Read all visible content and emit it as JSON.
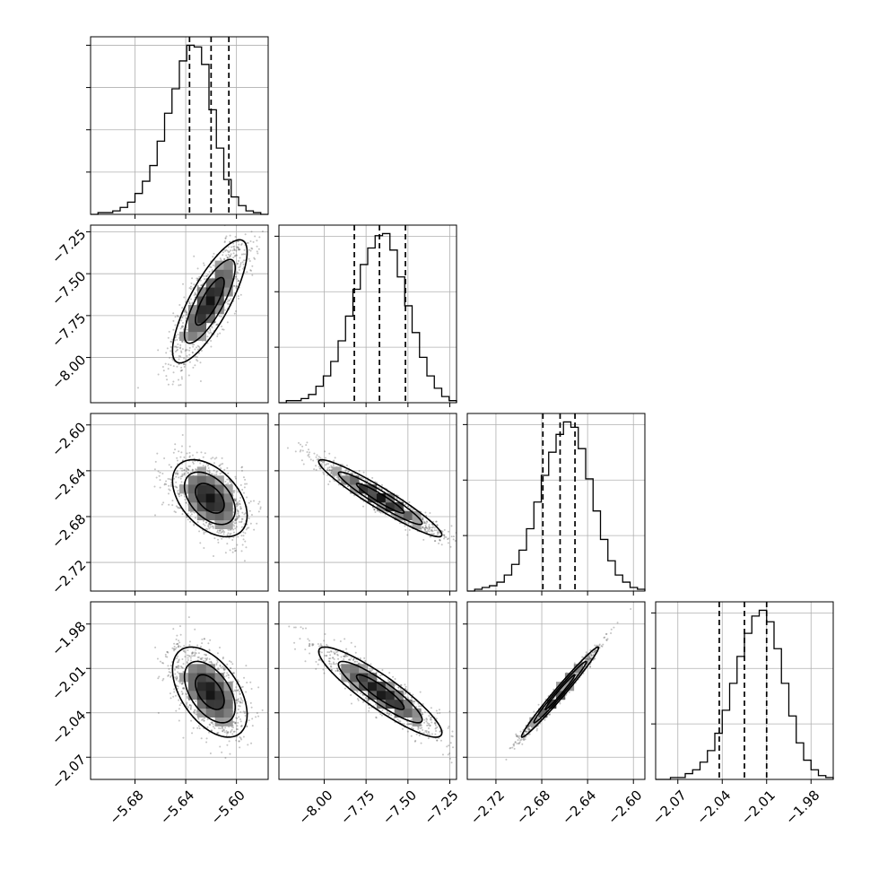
{
  "chart_data": {
    "type": "corner",
    "parameters": [
      {
        "index": 0,
        "range": [
          -5.715,
          -5.575
        ],
        "ticks": [
          "-5.68",
          "-5.64",
          "-5.60"
        ],
        "tick_values": [
          -5.68,
          -5.64,
          -5.6
        ],
        "quantiles": [
          -5.637,
          -5.62,
          -5.606
        ]
      },
      {
        "index": 1,
        "range": [
          -8.27,
          -7.21
        ],
        "ticks": [
          "-8.00",
          "-7.75",
          "-7.50",
          "-7.25"
        ],
        "tick_values": [
          -8.0,
          -7.75,
          -7.5,
          -7.25
        ],
        "quantiles": [
          -7.82,
          -7.67,
          -7.515
        ]
      },
      {
        "index": 2,
        "range": [
          -2.745,
          -2.59
        ],
        "ticks": [
          "-2.72",
          "-2.68",
          "-2.64",
          "-2.60"
        ],
        "tick_values": [
          -2.72,
          -2.68,
          -2.64,
          -2.6
        ],
        "quantiles": [
          -2.679,
          -2.664,
          -2.651
        ]
      },
      {
        "index": 3,
        "range": [
          -2.085,
          -1.965
        ],
        "ticks": [
          "-2.07",
          "-2.04",
          "-2.01",
          "-1.98"
        ],
        "tick_values": [
          -2.07,
          -2.04,
          -2.01,
          -1.98
        ],
        "quantiles": [
          -2.042,
          -2.025,
          -2.01
        ]
      }
    ],
    "diagonal_yticks": [
      [
        "",
        "",
        "",
        ""
      ],
      [
        "",
        "",
        ""
      ],
      [
        "",
        "",
        ""
      ],
      [
        "",
        "",
        ""
      ]
    ],
    "histograms": [
      [
        0,
        1,
        1,
        2,
        4,
        7,
        12,
        19,
        28,
        42,
        58,
        72,
        88,
        97,
        96,
        86,
        60,
        38,
        20,
        10,
        5,
        2,
        1,
        0
      ],
      [
        0,
        1,
        1,
        2,
        4,
        8,
        13,
        20,
        30,
        42,
        55,
        67,
        75,
        81,
        82,
        74,
        61,
        47,
        34,
        22,
        13,
        7,
        3,
        1
      ],
      [
        0,
        1,
        2,
        3,
        5,
        9,
        15,
        23,
        35,
        50,
        65,
        78,
        88,
        95,
        92,
        80,
        63,
        45,
        29,
        17,
        9,
        5,
        2,
        1
      ],
      [
        0,
        0,
        1,
        1,
        3,
        5,
        9,
        15,
        24,
        36,
        50,
        64,
        76,
        85,
        88,
        82,
        68,
        50,
        33,
        19,
        10,
        5,
        2,
        1
      ]
    ],
    "hist_peaks": [
      97,
      82,
      95,
      88
    ],
    "pairs": [
      {
        "row": 1,
        "col": 0,
        "center": [
          -5.621,
          -7.665
        ],
        "spread": [
          0.014,
          0.175
        ],
        "correlation": 0.8
      },
      {
        "row": 2,
        "col": 0,
        "center": [
          -5.621,
          -2.664
        ],
        "spread": [
          0.014,
          0.016
        ],
        "correlation": -0.45
      },
      {
        "row": 2,
        "col": 1,
        "center": [
          -7.665,
          -2.664
        ],
        "spread": [
          0.175,
          0.016
        ],
        "correlation": -0.95
      },
      {
        "row": 3,
        "col": 0,
        "center": [
          -5.621,
          -2.026
        ],
        "spread": [
          0.014,
          0.0145
        ],
        "correlation": -0.5
      },
      {
        "row": 3,
        "col": 1,
        "center": [
          -7.665,
          -2.026
        ],
        "spread": [
          0.175,
          0.0145
        ],
        "correlation": -0.9
      },
      {
        "row": 3,
        "col": 2,
        "center": [
          -2.664,
          -2.026
        ],
        "spread": [
          0.016,
          0.0145
        ],
        "correlation": 0.985
      }
    ],
    "grid": true,
    "line_color": "#000000",
    "point_color": "#555555",
    "grid_color": "#b0b0b0"
  }
}
